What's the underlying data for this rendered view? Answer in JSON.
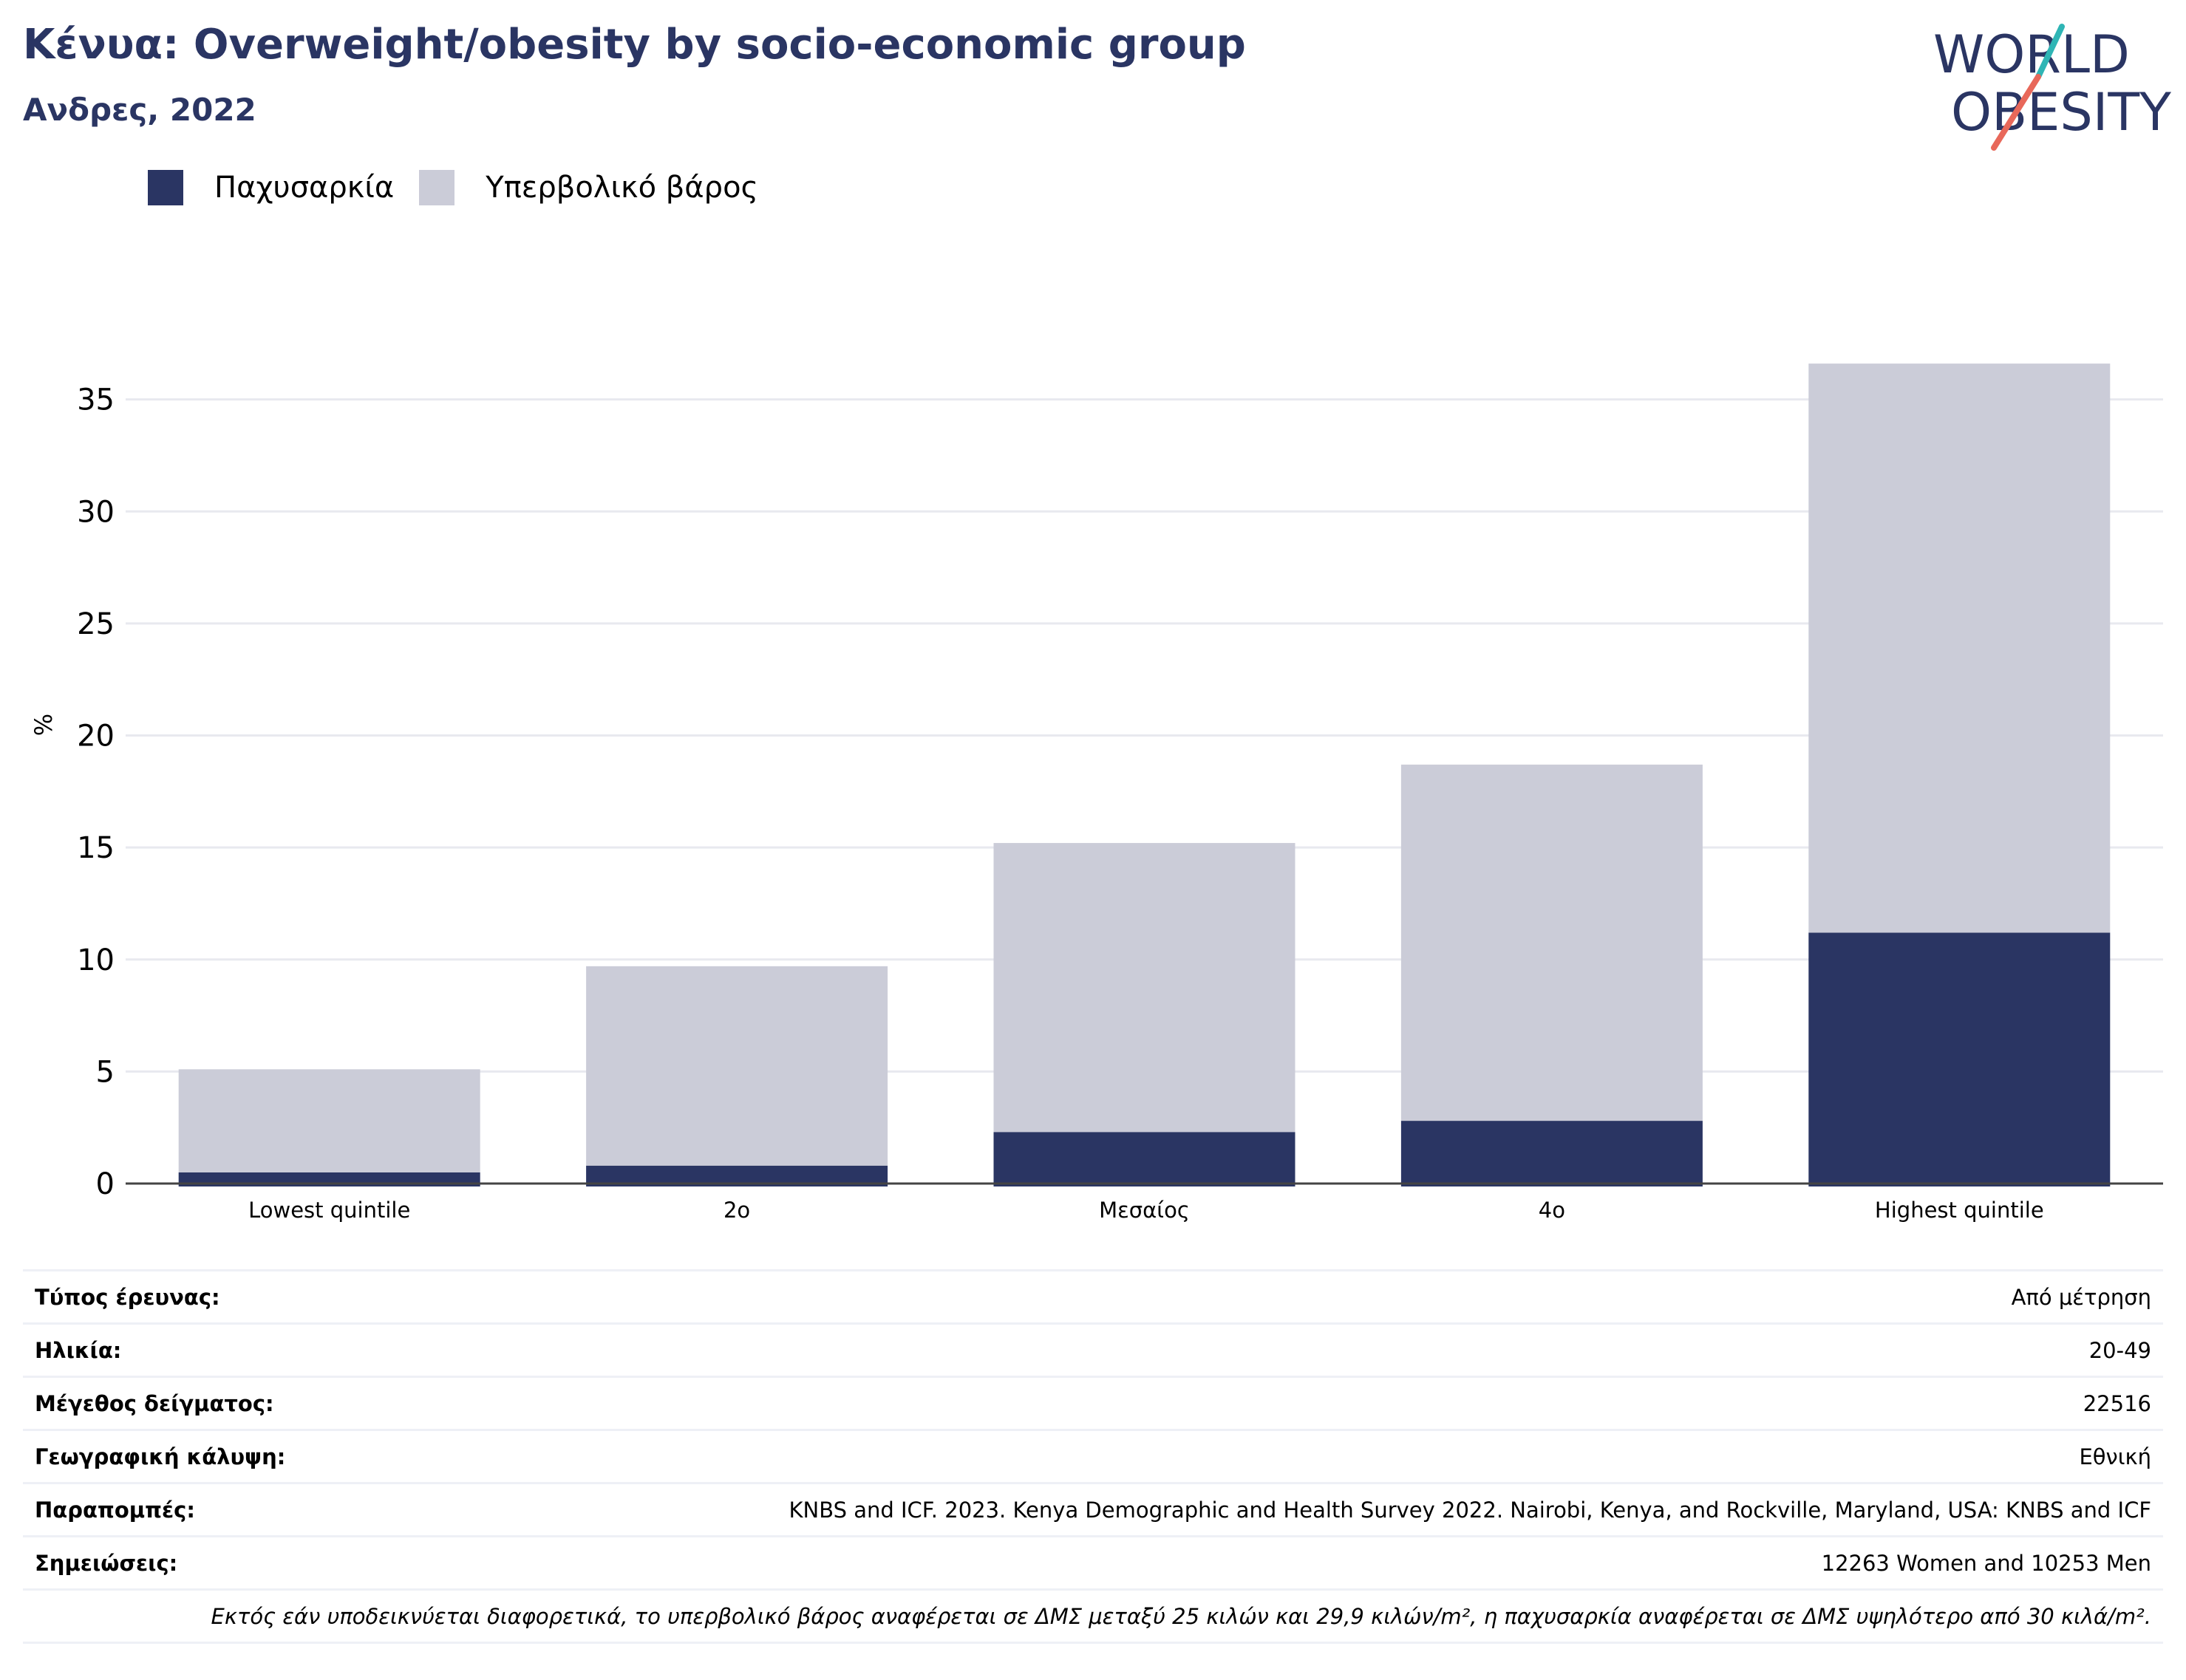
{
  "header": {
    "title": "Κένυα: Overweight/obesity by socio-economic group",
    "subtitle": "Ανδρες, 2022"
  },
  "logo": {
    "line1": "WORLD",
    "line2": "OBESITY",
    "colors": {
      "text": "#2a3563",
      "teal": "#2fb5b5",
      "coral": "#e8685a"
    }
  },
  "legend": {
    "items": [
      {
        "label": "Παχυσαρκία",
        "color": "#2a3563"
      },
      {
        "label": "Υπερβολικό βάρος",
        "color": "#cbccd8"
      }
    ]
  },
  "chart_data": {
    "type": "bar",
    "stacked": true,
    "title": "Κένυα: Overweight/obesity by socio-economic group",
    "subtitle": "Ανδρες, 2022",
    "xlabel": "",
    "ylabel": "%",
    "categories": [
      "Lowest quintile",
      "2ο",
      "Μεσαίος",
      "4ο",
      "Highest quintile"
    ],
    "series": [
      {
        "name": "Παχυσαρκία",
        "color": "#2a3563",
        "values": [
          0.5,
          0.8,
          2.3,
          2.8,
          11.2
        ]
      },
      {
        "name": "Υπερβολικό βάρος",
        "color": "#cbccd8",
        "values": [
          4.6,
          8.9,
          12.9,
          15.9,
          25.4
        ]
      }
    ],
    "ylim": [
      0,
      37
    ],
    "yticks": [
      0,
      5,
      10,
      15,
      20,
      25,
      30,
      35
    ],
    "grid": true,
    "legend_position": "top-left"
  },
  "info": {
    "rows": [
      {
        "label": "Τύπος έρευνας:",
        "value": "Από μέτρηση"
      },
      {
        "label": "Ηλικία:",
        "value": "20-49"
      },
      {
        "label": "Μέγεθος δείγματος:",
        "value": "22516"
      },
      {
        "label": "Γεωγραφική κάλυψη:",
        "value": "Εθνική"
      },
      {
        "label": "Παραπομπές:",
        "value": "KNBS and ICF. 2023. Kenya Demographic and Health Survey 2022. Nairobi, Kenya, and Rockville, Maryland, USA: KNBS and ICF"
      },
      {
        "label": "Σημειώσεις:",
        "value": "12263 Women and 10253 Men"
      }
    ],
    "note": "Εκτός εάν υποδεικνύεται διαφορετικά, το υπερβολικό βάρος αναφέρεται σε ΔΜΣ μεταξύ 25 κιλών και 29,9 κιλών/m², η παχυσαρκία αναφέρεται σε ΔΜΣ υψηλότερο από 30 κιλά/m²."
  }
}
